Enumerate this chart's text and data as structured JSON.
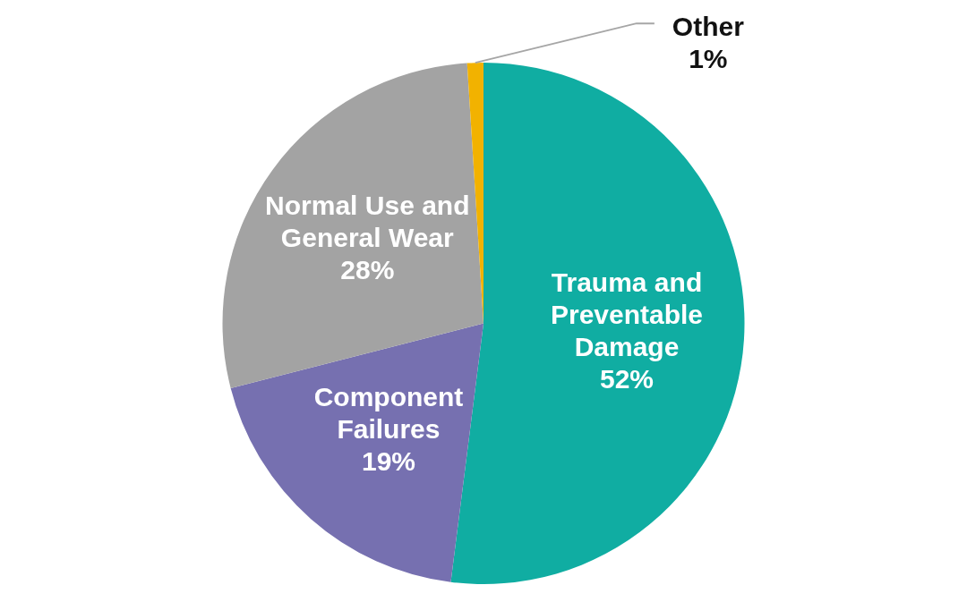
{
  "chart_data": {
    "type": "pie",
    "categories": [
      "Trauma and Preventable Damage",
      "Component Failures",
      "Normal Use and General Wear",
      "Other"
    ],
    "values": [
      52,
      19,
      28,
      1
    ],
    "value_labels": [
      "52%",
      "19%",
      "28%",
      "1%"
    ],
    "colors": [
      "#10ada2",
      "#7670b0",
      "#a3a3a3",
      "#f2b200"
    ],
    "legend": false
  }
}
